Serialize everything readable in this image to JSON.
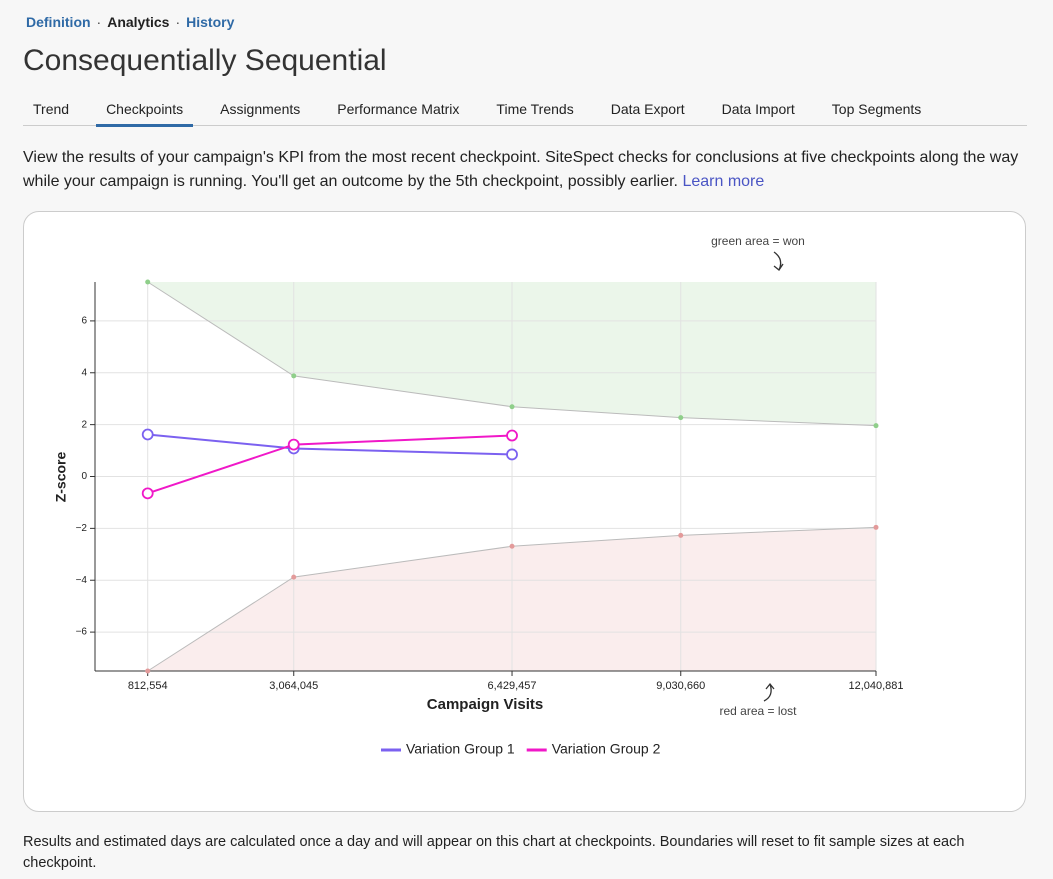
{
  "breadcrumb": [
    "Definition",
    "Analytics",
    "History"
  ],
  "title": "Consequentially Sequential",
  "tabs": [
    "Trend",
    "Checkpoints",
    "Assignments",
    "Performance Matrix",
    "Time Trends",
    "Data Export",
    "Data Import",
    "Top Segments"
  ],
  "active_tab": "Checkpoints",
  "description": {
    "text": "View the results of your campaign's KPI from the most recent checkpoint. SiteSpect checks for conclusions at five checkpoints along the way while your campaign is running. You'll get an outcome by the 5th checkpoint, possibly earlier.",
    "link": "Learn more"
  },
  "chart_data": {
    "type": "line",
    "xlabel": "Campaign Visits",
    "ylabel": "Z-score",
    "annotations": [
      "green area = won",
      "red area = lost"
    ],
    "x": [
      812554,
      3064045,
      6429457,
      9030660,
      12040881
    ],
    "xlim": [
      0,
      12040881
    ],
    "xticks": [
      {
        "value": 812554,
        "label": "812,554"
      },
      {
        "value": 3064045,
        "label": "3,064,045"
      },
      {
        "value": 6429457,
        "label": "6,429,457"
      },
      {
        "value": 9030660,
        "label": "9,030,660"
      },
      {
        "value": 12040881,
        "label": "12,040,881"
      }
    ],
    "ylim": [
      -7.5,
      7.5
    ],
    "yticks": [
      {
        "value": -6,
        "label": "−6"
      },
      {
        "value": -4,
        "label": "−4"
      },
      {
        "value": -2,
        "label": "−2"
      },
      0,
      2,
      4,
      6
    ],
    "grid": true,
    "bounds": {
      "upper": [
        7.5,
        3.88,
        2.69,
        2.27,
        1.96
      ],
      "lower": [
        -7.5,
        -3.88,
        -2.69,
        -2.27,
        -1.96
      ],
      "won_color": "#8fcf8a",
      "lost_color": "#e39a9a"
    },
    "series": [
      {
        "name": "Variation Group 1",
        "color": "#7b61f0",
        "values": [
          1.62,
          1.08,
          0.85,
          null,
          null
        ]
      },
      {
        "name": "Variation Group 2",
        "color": "#f018c8",
        "values": [
          -0.65,
          1.23,
          1.58,
          null,
          null
        ]
      }
    ]
  },
  "footer": "Results and estimated days are calculated once a day and will appear on this chart at checkpoints. Boundaries will reset to fit sample sizes at each checkpoint."
}
